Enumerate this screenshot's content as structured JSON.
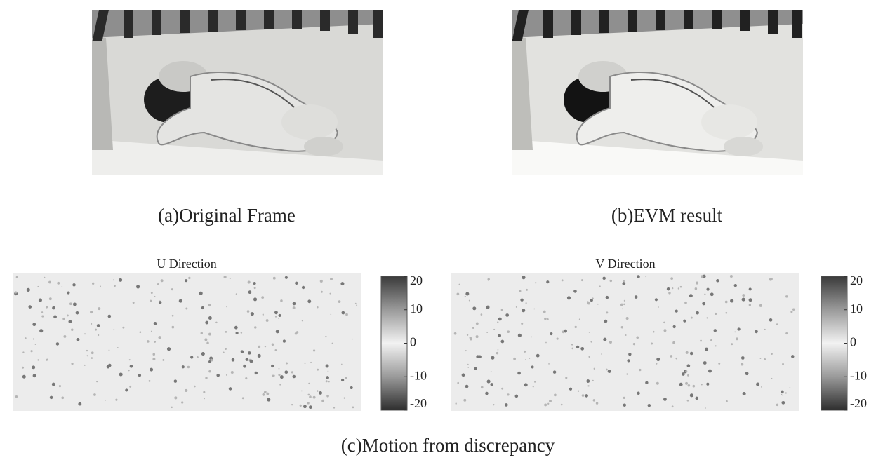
{
  "figure": {
    "panels": [
      {
        "caption": "(a)Original Frame"
      },
      {
        "caption": "(b)EVM result"
      }
    ],
    "motion": {
      "caption": "(c)Motion from discrepancy",
      "maps": [
        {
          "title": "U Direction",
          "colorbar": {
            "lim": [
              -20,
              20
            ],
            "ticks": [
              20,
              10,
              0,
              -10,
              -20
            ]
          }
        },
        {
          "title": "V Direction",
          "colorbar": {
            "lim": [
              -20,
              20
            ],
            "ticks": [
              20,
              10,
              0,
              -10,
              -20
            ]
          }
        }
      ]
    }
  }
}
